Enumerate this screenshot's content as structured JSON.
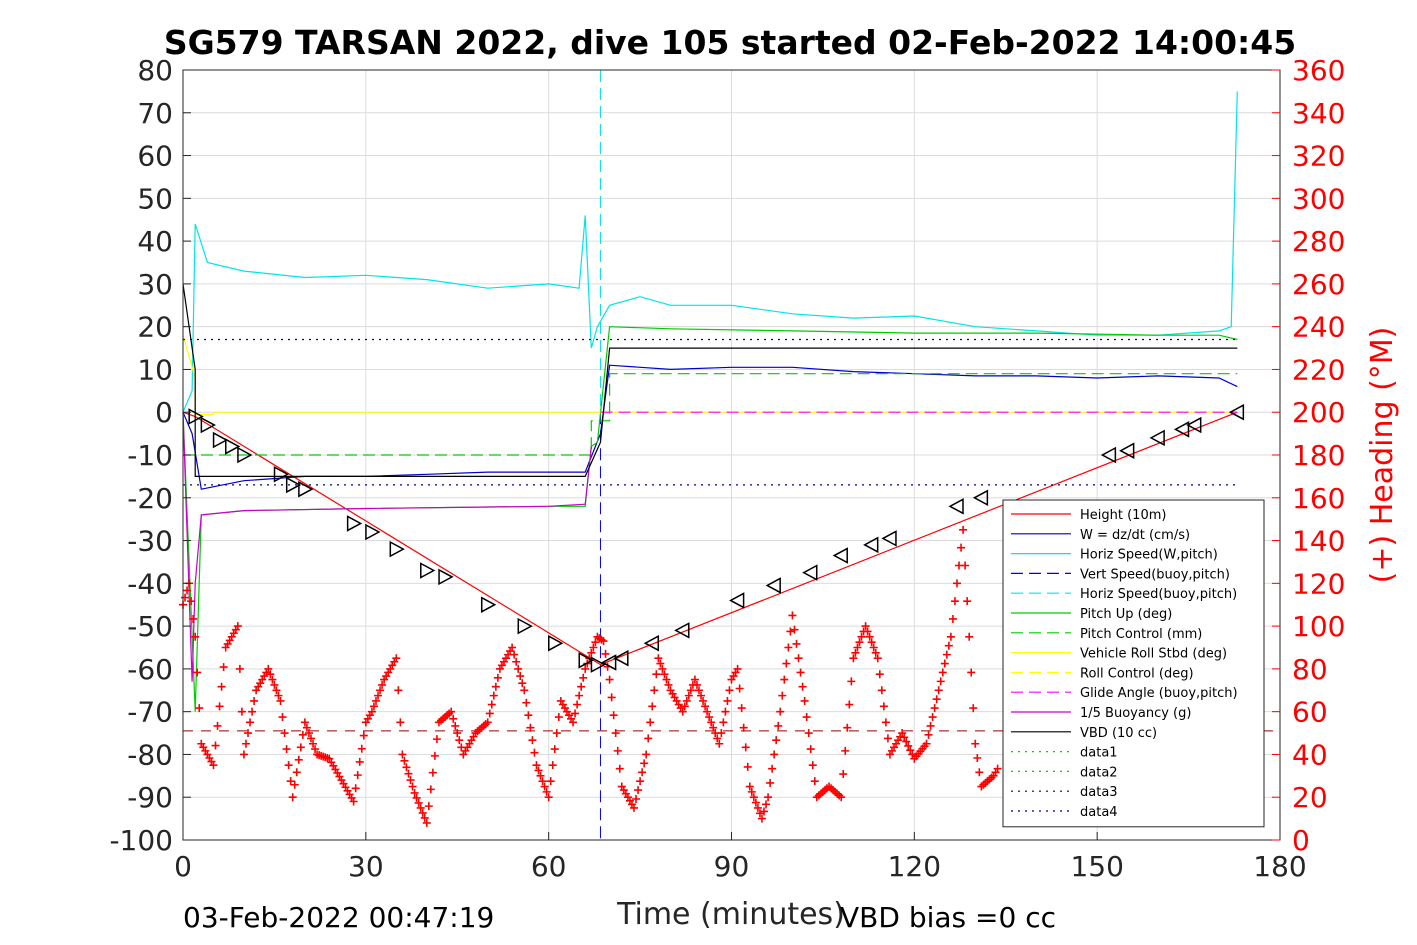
{
  "chart_data": {
    "type": "line",
    "title": "SG579 TARSAN 2022, dive 105 started 02-Feb-2022 14:00:45",
    "xlabel": "Time (minutes)",
    "ylabel_right": "(+) Heading (°M)",
    "xlim": [
      0,
      180
    ],
    "ylim": [
      -100,
      80
    ],
    "ylim_right": [
      0,
      360
    ],
    "xticks": [
      "0",
      "30",
      "60",
      "90",
      "120",
      "150",
      "180"
    ],
    "yticks": [
      "80",
      "70",
      "60",
      "50",
      "40",
      "30",
      "20",
      "10",
      "0",
      "-10",
      "-20",
      "-30",
      "-40",
      "-50",
      "-60",
      "-70",
      "-80",
      "-90",
      "-100"
    ],
    "yticks_right": [
      "360",
      "340",
      "320",
      "300",
      "280",
      "260",
      "240",
      "220",
      "200",
      "180",
      "160",
      "140",
      "120",
      "100",
      "80",
      "60",
      "40",
      "20",
      "0"
    ],
    "grid": true,
    "legend_position": "lower-right",
    "footer_left": "03-Feb-2022 00:47:19",
    "footer_right": "VBD bias =0 cc",
    "apogee_time": 68.5,
    "series": [
      {
        "name": "Height (10m)",
        "color": "#ff0000",
        "style": "solid",
        "x": [
          0,
          2,
          68.5,
          173
        ],
        "y": [
          0,
          -1,
          -59,
          0
        ]
      },
      {
        "name": "W = dz/dt (cm/s)",
        "color": "#0000cc",
        "style": "solid",
        "x": [
          0,
          1.5,
          3,
          10,
          20,
          30,
          40,
          50,
          60,
          66,
          68.5,
          70,
          80,
          90,
          100,
          110,
          120,
          130,
          140,
          150,
          160,
          170,
          173
        ],
        "y": [
          0,
          -5,
          -18,
          -16,
          -15,
          -15,
          -14.5,
          -14,
          -14,
          -14,
          -5,
          11,
          10,
          10.5,
          10.5,
          9.5,
          9,
          8.5,
          8.5,
          8,
          8.5,
          8,
          6
        ]
      },
      {
        "name": "Horiz Speed(W,pitch)",
        "color": "#00e5e5",
        "style": "solid",
        "x": [
          0,
          1.5,
          2,
          4,
          10,
          20,
          30,
          40,
          50,
          60,
          65,
          66,
          67,
          68,
          70,
          75,
          80,
          90,
          100,
          110,
          120,
          130,
          140,
          150,
          160,
          170,
          172,
          173
        ],
        "y": [
          0,
          5,
          44,
          35,
          33,
          31.5,
          32,
          31,
          29,
          30,
          29,
          46,
          15,
          20,
          25,
          27,
          25,
          25,
          23,
          22,
          22.5,
          20,
          19,
          18,
          18,
          19,
          20,
          75
        ]
      },
      {
        "name": "Vert Speed(buoy,pitch)",
        "color": "#0000ff",
        "style": "dash",
        "x": [],
        "y": []
      },
      {
        "name": "Horiz Speed(buoy,pitch)",
        "color": "#00e5e5",
        "style": "dash",
        "x": [],
        "y": []
      },
      {
        "name": "Pitch Up (deg)",
        "color": "#00cc00",
        "style": "solid",
        "x": [
          0,
          2,
          3,
          10,
          30,
          60,
          66,
          67,
          68,
          70,
          80,
          100,
          120,
          140,
          160,
          170,
          173
        ],
        "y": [
          0,
          -70,
          -24,
          -23,
          -22.5,
          -22,
          -22,
          -8,
          -7,
          20,
          19.5,
          19,
          18.5,
          18.5,
          18,
          18,
          17
        ]
      },
      {
        "name": "Pitch Control (mm)",
        "color": "#00cc00",
        "style": "dash",
        "x": [
          0,
          67,
          67,
          70,
          70,
          173
        ],
        "y": [
          -10,
          -10,
          -2,
          -2,
          9,
          9
        ]
      },
      {
        "name": "Vehicle Roll Stbd (deg)",
        "color": "#ffff00",
        "style": "solid",
        "x": [
          0,
          2,
          2,
          5,
          5,
          66,
          66,
          173
        ],
        "y": [
          18,
          8,
          -0.5,
          -0.5,
          0,
          0,
          0,
          0
        ]
      },
      {
        "name": "Roll Control (deg)",
        "color": "#ffff00",
        "style": "dash",
        "x": [],
        "y": []
      },
      {
        "name": "Glide Angle (buoy,pitch)",
        "color": "#ff00ff",
        "style": "dash",
        "x": [
          68.5,
          173
        ],
        "y": [
          0,
          0
        ]
      },
      {
        "name": "1/5 Buoyancy (g)",
        "color": "#cc00cc",
        "style": "solid",
        "x": [
          0,
          1.5,
          2,
          3,
          10,
          30,
          60,
          66,
          67
        ],
        "y": [
          0,
          -63,
          -40,
          -24,
          -23,
          -22.5,
          -22,
          -21.5,
          -8
        ]
      },
      {
        "name": "VBD (10 cc)",
        "color": "#000000",
        "style": "solid",
        "x": [
          0,
          2,
          2,
          66,
          66,
          68.5,
          70,
          70,
          173
        ],
        "y": [
          30,
          10,
          -15,
          -15,
          -15,
          -7,
          15,
          15,
          15
        ]
      },
      {
        "name": "data1",
        "color": "#00cc00",
        "style": "dot",
        "x": [],
        "y": []
      },
      {
        "name": "data2",
        "color": "#00cc00",
        "style": "dot",
        "x": [],
        "y": []
      },
      {
        "name": "data3",
        "color": "#000080",
        "style": "dot",
        "x": [
          0,
          173
        ],
        "y": [
          17,
          17
        ]
      },
      {
        "name": "data4",
        "color": "#000080",
        "style": "dot",
        "x": [
          0,
          173
        ],
        "y": [
          -17,
          -17
        ]
      }
    ],
    "heading": {
      "color": "#ff0000",
      "marker": "+",
      "t": [
        0,
        1,
        2,
        3,
        5,
        7,
        9,
        10,
        12,
        14,
        16,
        18,
        20,
        22,
        24,
        26,
        28,
        30,
        31,
        33,
        35,
        36,
        38,
        40,
        42,
        44,
        46,
        48,
        50,
        52,
        54,
        56,
        58,
        60,
        62,
        64,
        66,
        68,
        69,
        70,
        72,
        74,
        76,
        78,
        80,
        82,
        84,
        86,
        88,
        90,
        91,
        93,
        95,
        96,
        98,
        100,
        102,
        104,
        106,
        108,
        110,
        112,
        114,
        116,
        118,
        120,
        122,
        124,
        126,
        128,
        130,
        131,
        133,
        134
      ],
      "h": [
        110,
        120,
        95,
        45,
        35,
        90,
        100,
        40,
        70,
        80,
        65,
        20,
        55,
        40,
        38,
        28,
        18,
        55,
        60,
        75,
        85,
        40,
        22,
        8,
        55,
        60,
        40,
        50,
        55,
        80,
        90,
        70,
        35,
        20,
        65,
        55,
        80,
        95,
        93,
        75,
        25,
        15,
        40,
        85,
        70,
        60,
        75,
        60,
        45,
        75,
        80,
        25,
        10,
        20,
        60,
        105,
        65,
        20,
        25,
        20,
        85,
        100,
        85,
        40,
        50,
        38,
        45,
        70,
        95,
        145,
        45,
        25,
        30,
        35
      ]
    },
    "triangles": [
      {
        "t": 2,
        "h": -1
      },
      {
        "t": 4,
        "h": -3
      },
      {
        "t": 6,
        "h": -6.5
      },
      {
        "t": 8,
        "h": -8
      },
      {
        "t": 10,
        "h": -10
      },
      {
        "t": 16,
        "h": -14.5
      },
      {
        "t": 18,
        "h": -17
      },
      {
        "t": 20,
        "h": -18
      },
      {
        "t": 28,
        "h": -26
      },
      {
        "t": 31,
        "h": -28
      },
      {
        "t": 35,
        "h": -32
      },
      {
        "t": 40,
        "h": -37
      },
      {
        "t": 43,
        "h": -38.5
      },
      {
        "t": 50,
        "h": -45
      },
      {
        "t": 56,
        "h": -50
      },
      {
        "t": 61,
        "h": -54
      },
      {
        "t": 66,
        "h": -58
      },
      {
        "t": 68,
        "h": -59
      },
      {
        "t": 70,
        "h": -58.5
      },
      {
        "t": 72,
        "h": -57.5
      },
      {
        "t": 77,
        "h": -54
      },
      {
        "t": 82,
        "h": -51
      },
      {
        "t": 91,
        "h": -44
      },
      {
        "t": 97,
        "h": -40.5
      },
      {
        "t": 103,
        "h": -37.5
      },
      {
        "t": 108,
        "h": -33.5
      },
      {
        "t": 113,
        "h": -31
      },
      {
        "t": 116,
        "h": -29.5
      },
      {
        "t": 127,
        "h": -22
      },
      {
        "t": 131,
        "h": -20
      },
      {
        "t": 152,
        "h": -10
      },
      {
        "t": 155,
        "h": -9
      },
      {
        "t": 160,
        "h": -6
      },
      {
        "t": 164,
        "h": -4
      },
      {
        "t": 166,
        "h": -3
      },
      {
        "t": 173,
        "h": 0
      }
    ]
  }
}
